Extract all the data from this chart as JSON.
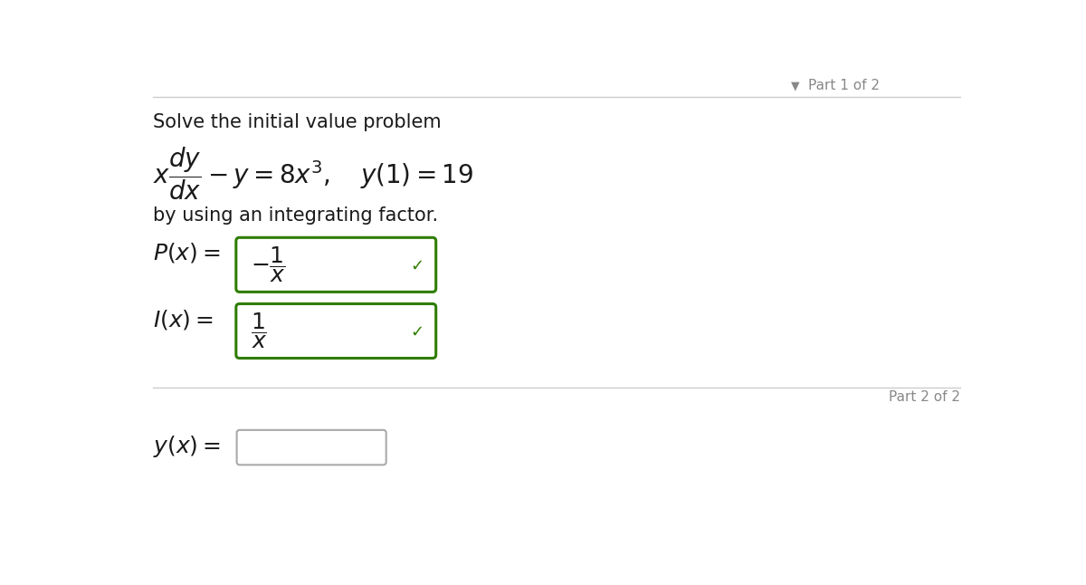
{
  "bg_color": "#ffffff",
  "text_color": "#1a1a1a",
  "gray_color": "#888888",
  "green_color": "#2e7d00",
  "box_border_color": "#2e7d00",
  "empty_box_border_color": "#aaaaaa",
  "line_color": "#cccccc",
  "part1_label": "Part 1 of 2",
  "part2_label": "Part 2 of 2",
  "solve_text": "Solve the initial value problem",
  "by_text": "by using an integrating factor."
}
